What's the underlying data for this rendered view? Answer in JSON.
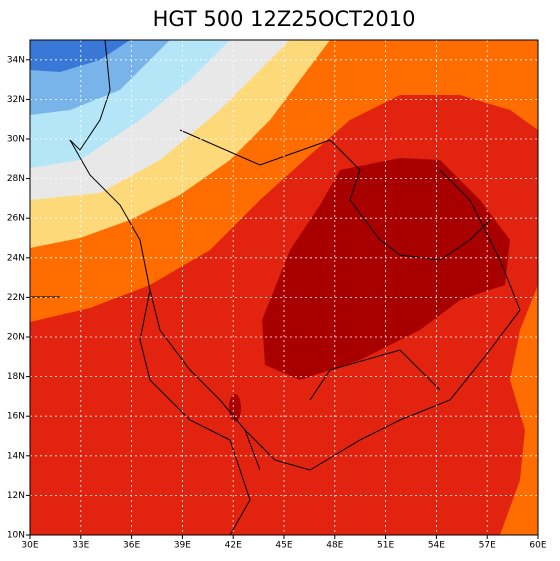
{
  "title": "HGT 500 12Z25OCT2010",
  "x_labels": [
    "30E",
    "33E",
    "36E",
    "39E",
    "42E",
    "45E",
    "48E",
    "51E",
    "54E",
    "57E",
    "60E"
  ],
  "y_labels": [
    "10N",
    "12N",
    "14N",
    "16N",
    "18N",
    "20N",
    "22N",
    "24N",
    "26N",
    "28N",
    "30N",
    "32N",
    "34N"
  ]
}
